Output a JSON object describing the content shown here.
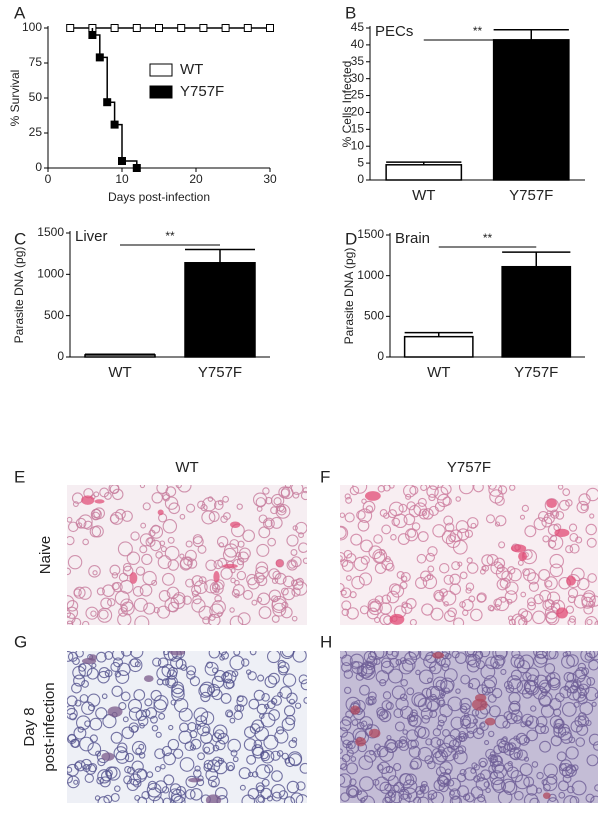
{
  "chart_data": [
    {
      "type": "line",
      "panel": "A",
      "x_label": "Days post-infection",
      "y_label": "% Survival",
      "xlim": [
        0,
        30
      ],
      "xticks": [
        0,
        10,
        20,
        30
      ],
      "ylim": [
        0,
        100
      ],
      "yticks": [
        0,
        25,
        50,
        75,
        100
      ],
      "series": [
        {
          "name": "WT",
          "color": "#ffffff",
          "x": [
            3,
            6,
            9,
            12,
            15,
            18,
            21,
            24,
            27,
            30
          ],
          "values": [
            100,
            100,
            100,
            100,
            100,
            100,
            100,
            100,
            100,
            100
          ]
        },
        {
          "name": "Y757F",
          "color": "#000000",
          "x": [
            6,
            7,
            8,
            9,
            10,
            12
          ],
          "values": [
            95,
            79,
            47,
            31,
            5,
            0
          ]
        }
      ]
    },
    {
      "type": "bar",
      "panel": "B",
      "annotation": "PECs",
      "significance": "**",
      "y_label": "% Cells Infected",
      "categories": [
        "WT",
        "Y757F"
      ],
      "values": [
        4.5,
        41.5
      ],
      "errors": [
        0.8,
        3
      ],
      "colors": [
        "#ffffff",
        "#000000"
      ],
      "ylim": [
        0,
        45
      ],
      "yticks": [
        0,
        5,
        10,
        15,
        20,
        25,
        30,
        35,
        40,
        45
      ]
    },
    {
      "type": "bar",
      "panel": "C",
      "annotation": "Liver",
      "significance": "**",
      "y_label": "Parasite DNA (pg)",
      "categories": [
        "WT",
        "Y757F"
      ],
      "values": [
        25,
        1140
      ],
      "errors": [
        8,
        160
      ],
      "colors": [
        "#ffffff",
        "#000000"
      ],
      "ylim": [
        0,
        1500
      ],
      "yticks": [
        0,
        500,
        1000,
        1500
      ]
    },
    {
      "type": "bar",
      "panel": "D",
      "annotation": "Brain",
      "significance": "**",
      "y_label": "Parasite DNA (pg)",
      "categories": [
        "WT",
        "Y757F"
      ],
      "values": [
        250,
        1110
      ],
      "errors": [
        50,
        180
      ],
      "colors": [
        "#ffffff",
        "#000000"
      ],
      "ylim": [
        0,
        1500
      ],
      "yticks": [
        0,
        500,
        1000,
        1500
      ]
    }
  ],
  "histology": {
    "columns": [
      "WT",
      "Y757F"
    ],
    "rows": [
      "Naive",
      "Day 8",
      "post-infection"
    ],
    "panels": [
      "E",
      "F",
      "G",
      "H"
    ]
  }
}
